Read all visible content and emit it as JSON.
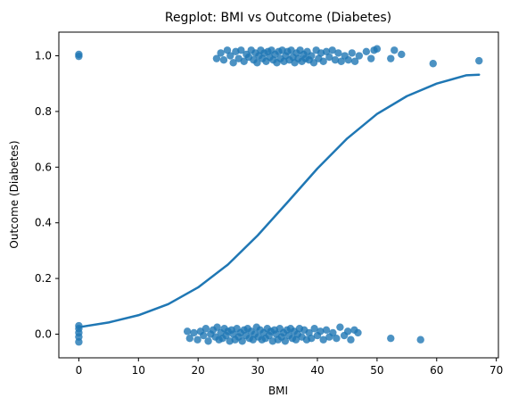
{
  "chart_data": {
    "type": "scatter",
    "title": "Regplot: BMI vs Outcome (Diabetes)",
    "xlabel": "BMI",
    "ylabel": "Outcome (Diabetes)",
    "xlim": [
      -3.35,
      70.35
    ],
    "ylim": [
      -0.085,
      1.085
    ],
    "xticks": [
      0,
      10,
      20,
      30,
      40,
      50,
      60,
      70
    ],
    "yticks": [
      0.0,
      0.2,
      0.4,
      0.6,
      0.8,
      1.0
    ],
    "xtick_labels": [
      "0",
      "10",
      "20",
      "30",
      "40",
      "50",
      "60",
      "70"
    ],
    "ytick_labels": [
      "0.0",
      "0.2",
      "0.4",
      "0.6",
      "0.8",
      "1.0"
    ],
    "grid": false,
    "legend": "none",
    "colors": {
      "points": "#1f77b4",
      "line": "#1f77b4"
    },
    "series": [
      {
        "kind": "points",
        "points": [
          [
            0,
            1.005
          ],
          [
            0,
            0.998
          ],
          [
            23.1,
            0.99
          ],
          [
            23.8,
            1.01
          ],
          [
            24.3,
            0.985
          ],
          [
            24.9,
            1.02
          ],
          [
            25.4,
            1.0
          ],
          [
            25.9,
            0.975
          ],
          [
            26.3,
            1.015
          ],
          [
            26.8,
            0.99
          ],
          [
            27.2,
            1.02
          ],
          [
            27.7,
            0.98
          ],
          [
            28.1,
            1.005
          ],
          [
            28.5,
            0.995
          ],
          [
            28.9,
            1.02
          ],
          [
            29.3,
            0.985
          ],
          [
            29.6,
            1.01
          ],
          [
            29.9,
            0.975
          ],
          [
            30.2,
            1.0
          ],
          [
            30.5,
            1.02
          ],
          [
            30.8,
            0.99
          ],
          [
            31.1,
            1.01
          ],
          [
            31.4,
            0.98
          ],
          [
            31.7,
            1.015
          ],
          [
            32.0,
            0.995
          ],
          [
            32.3,
            1.02
          ],
          [
            32.6,
            0.985
          ],
          [
            32.9,
            1.005
          ],
          [
            33.2,
            0.975
          ],
          [
            33.5,
            1.015
          ],
          [
            33.8,
            0.99
          ],
          [
            34.1,
            1.02
          ],
          [
            34.4,
            0.98
          ],
          [
            34.7,
            1.0
          ],
          [
            35.0,
            1.015
          ],
          [
            35.3,
            0.985
          ],
          [
            35.6,
            1.02
          ],
          [
            35.9,
            0.995
          ],
          [
            36.2,
            0.975
          ],
          [
            36.5,
            1.01
          ],
          [
            36.8,
            0.99
          ],
          [
            37.1,
            1.02
          ],
          [
            37.4,
            0.98
          ],
          [
            37.7,
            1.005
          ],
          [
            38.0,
            0.99
          ],
          [
            38.3,
            1.015
          ],
          [
            38.6,
            0.985
          ],
          [
            39.0,
            1.0
          ],
          [
            39.4,
            0.975
          ],
          [
            39.8,
            1.02
          ],
          [
            40.2,
            0.99
          ],
          [
            40.6,
            1.01
          ],
          [
            41.0,
            0.98
          ],
          [
            41.5,
            1.015
          ],
          [
            42.0,
            0.995
          ],
          [
            42.5,
            1.02
          ],
          [
            43.0,
            0.985
          ],
          [
            43.5,
            1.01
          ],
          [
            44.0,
            0.98
          ],
          [
            44.6,
            1.0
          ],
          [
            45.2,
            0.985
          ],
          [
            45.8,
            1.01
          ],
          [
            46.3,
            0.98
          ],
          [
            47.0,
            1.0
          ],
          [
            48.2,
            1.015
          ],
          [
            49.0,
            0.99
          ],
          [
            49.5,
            1.02
          ],
          [
            50.0,
            1.025
          ],
          [
            52.3,
            0.99
          ],
          [
            52.9,
            1.02
          ],
          [
            54.1,
            1.005
          ],
          [
            59.4,
            0.972
          ],
          [
            67.1,
            0.982
          ],
          [
            0,
            0.03
          ],
          [
            0,
            0.02
          ],
          [
            0,
            0.005
          ],
          [
            0,
            -0.01
          ],
          [
            0,
            -0.028
          ],
          [
            18.2,
            0.01
          ],
          [
            18.6,
            -0.015
          ],
          [
            19.3,
            0.005
          ],
          [
            19.9,
            -0.02
          ],
          [
            20.4,
            0.01
          ],
          [
            20.9,
            -0.005
          ],
          [
            21.3,
            0.02
          ],
          [
            21.7,
            -0.025
          ],
          [
            22.1,
            0.0
          ],
          [
            22.5,
            0.015
          ],
          [
            22.9,
            -0.01
          ],
          [
            23.2,
            0.025
          ],
          [
            23.5,
            -0.02
          ],
          [
            23.8,
            0.005
          ],
          [
            24.1,
            -0.015
          ],
          [
            24.4,
            0.02
          ],
          [
            24.7,
            -0.005
          ],
          [
            25.0,
            0.01
          ],
          [
            25.3,
            -0.025
          ],
          [
            25.6,
            0.015
          ],
          [
            25.9,
            0.0
          ],
          [
            26.2,
            -0.02
          ],
          [
            26.5,
            0.02
          ],
          [
            26.8,
            -0.01
          ],
          [
            27.1,
            0.005
          ],
          [
            27.4,
            -0.025
          ],
          [
            27.7,
            0.015
          ],
          [
            28.0,
            -0.005
          ],
          [
            28.3,
            0.02
          ],
          [
            28.6,
            -0.015
          ],
          [
            28.9,
            0.01
          ],
          [
            29.2,
            -0.02
          ],
          [
            29.5,
            0.0
          ],
          [
            29.8,
            0.025
          ],
          [
            30.1,
            -0.01
          ],
          [
            30.4,
            0.015
          ],
          [
            30.7,
            -0.02
          ],
          [
            31.0,
            0.005
          ],
          [
            31.3,
            -0.015
          ],
          [
            31.6,
            0.02
          ],
          [
            31.9,
            -0.005
          ],
          [
            32.2,
            0.01
          ],
          [
            32.5,
            -0.025
          ],
          [
            32.8,
            0.015
          ],
          [
            33.1,
            0.0
          ],
          [
            33.4,
            -0.02
          ],
          [
            33.7,
            0.02
          ],
          [
            34.0,
            -0.01
          ],
          [
            34.3,
            0.005
          ],
          [
            34.6,
            -0.025
          ],
          [
            34.9,
            0.015
          ],
          [
            35.2,
            -0.005
          ],
          [
            35.5,
            0.02
          ],
          [
            35.8,
            -0.015
          ],
          [
            36.1,
            0.01
          ],
          [
            36.4,
            -0.02
          ],
          [
            36.7,
            0.0
          ],
          [
            37.0,
            0.02
          ],
          [
            37.4,
            -0.01
          ],
          [
            37.8,
            0.015
          ],
          [
            38.2,
            -0.02
          ],
          [
            38.6,
            0.005
          ],
          [
            39.0,
            -0.015
          ],
          [
            39.5,
            0.02
          ],
          [
            40.0,
            -0.005
          ],
          [
            40.5,
            0.01
          ],
          [
            41.0,
            -0.02
          ],
          [
            41.5,
            0.015
          ],
          [
            42.0,
            -0.01
          ],
          [
            42.6,
            0.005
          ],
          [
            43.2,
            -0.015
          ],
          [
            43.8,
            0.025
          ],
          [
            44.5,
            -0.005
          ],
          [
            45.1,
            0.01
          ],
          [
            45.6,
            -0.02
          ],
          [
            46.2,
            0.015
          ],
          [
            46.8,
            0.005
          ],
          [
            52.3,
            -0.015
          ],
          [
            57.3,
            -0.02
          ]
        ]
      },
      {
        "kind": "fit-line",
        "x": [
          0,
          5,
          10,
          15,
          20,
          25,
          30,
          35,
          40,
          45,
          50,
          55,
          60,
          65,
          67.1
        ],
        "y": [
          0.025,
          0.042,
          0.068,
          0.108,
          0.168,
          0.25,
          0.355,
          0.474,
          0.595,
          0.703,
          0.791,
          0.855,
          0.9,
          0.93,
          0.932
        ]
      }
    ]
  }
}
